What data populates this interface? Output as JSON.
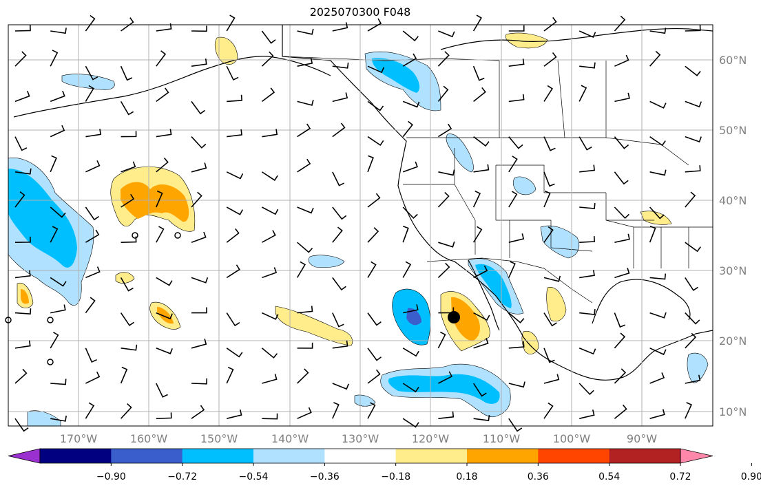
{
  "title": "2025070300 F048",
  "longitude_labels": [
    "170°W",
    "160°W",
    "150°W",
    "140°W",
    "130°W",
    "120°W",
    "110°W",
    "100°W",
    "90°W"
  ],
  "latitude_labels": [
    "60°N",
    "50°N",
    "40°N",
    "30°N",
    "20°N",
    "10°N"
  ],
  "colorbar": {
    "colors": [
      "#9b30d0",
      "#000080",
      "#3a5fcd",
      "#00bfff",
      "#b0e2ff",
      "#ffffff",
      "#ffec8b",
      "#ffa500",
      "#ff4500",
      "#b22222",
      "#ff88aa"
    ],
    "levels": [
      "−0.90",
      "−0.72",
      "−0.54",
      "−0.36",
      "−0.18",
      "0.18",
      "0.36",
      "0.54",
      "0.72",
      "0.90"
    ]
  },
  "colors": {
    "grid": "#b0b0b0",
    "coast": "#000000",
    "marker": "#000000"
  }
}
